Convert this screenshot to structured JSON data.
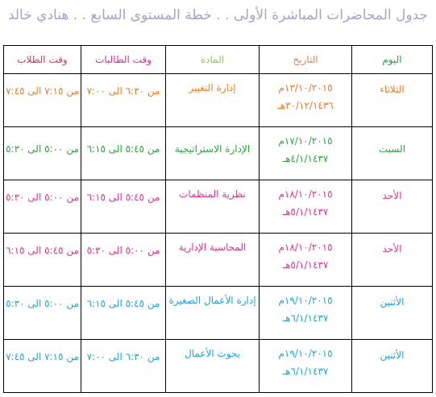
{
  "title": "جدول المحاضرات المباشرة الأولى . . خطة المستوى السابع . . هنادي خالد",
  "colors": {
    "title": "#a6a1cf",
    "day": "#2ea33c",
    "date": "#e08060",
    "subject": "#99c36a",
    "female_time": "#e02a9b",
    "male_time": "#e0334d"
  },
  "headers": {
    "day": "اليوم",
    "date": "التاريخ",
    "subject": "المادة",
    "female_time": "وقت الطالبات",
    "male_time": "وقت الطلاب"
  },
  "rows": [
    {
      "day": "الثلاثاء",
      "date_g": "١٣/١٠/٢٠١٥م",
      "date_h": "٣٠/١٢/١٤٣٦هـ",
      "subject": "إدارة التغيير",
      "female_time": "من ٦:٣٠ الى ٧:٠٠",
      "male_time": "من ٧:١٥ الى ٧:٤٥",
      "color": "#f07a24"
    },
    {
      "day": "السبت",
      "date_g": "١٧/١٠/٢٠١٥م",
      "date_h": "٤/١/١٤٣٧هـ",
      "subject": "الإدارة الاستراتيجية",
      "female_time": "من ٥:٤٥ الى ٦:١٥",
      "male_time": "من ٥:٠٠ الى ٥:٣٠",
      "color": "#2ea33c"
    },
    {
      "day": "الأحد",
      "date_g": "١٨/١٠/٢٠١٥م",
      "date_h": "٥/١/١٤٣٧هـ",
      "subject": "نظرية المنظمات",
      "female_time": "من ٥:٤٥ الى ٦:١٥",
      "male_time": "من ٥:٠٠ الى ٥:٣٠",
      "color": "#e4318f"
    },
    {
      "day": "الأحد",
      "date_g": "١٨/١٠/٢٠١٥م",
      "date_h": "٥/١/١٤٣٧هـ",
      "subject": "المحاسبة الإدارية",
      "female_time": "من ٥:٠٠ الى ٥:٣٠",
      "male_time": "من ٥:٤٥ الى ٦:١٥",
      "color": "#e4318f"
    },
    {
      "day": "الأثنين",
      "date_g": "١٩/١٠/٢٠١٥م",
      "date_h": "٦/١/١٤٣٧هـ",
      "subject": "إدارة الأعمال الصغيرة",
      "female_time": "من ٥:٤٥ الى ٦:١٥",
      "male_time": "من ٥:٠٠ الى ٥:٣٠",
      "color": "#1fa3d8"
    },
    {
      "day": "الأثنين",
      "date_g": "١٩/١٠/٢٠١٥م",
      "date_h": "٦/١/١٤٣٧هـ",
      "subject": "بحوث الأعمال",
      "female_time": "من ٦:٣٠ الى ٧:٠٠",
      "male_time": "من ٧:١٥ الى ٧:٤٥",
      "color": "#1fa3d8"
    }
  ]
}
